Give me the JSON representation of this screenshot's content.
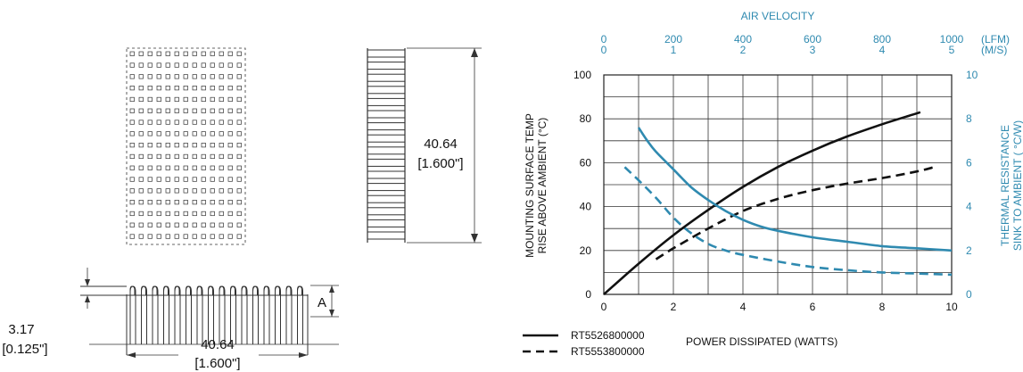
{
  "drawing": {
    "dim_height_mm": "40.64",
    "dim_height_in": "[1.600\"]",
    "dim_width_mm": "40.64",
    "dim_width_in": "[1.600\"]",
    "dim_base_mm": "3.17",
    "dim_base_in": "[0.125\"]",
    "dim_fin_label": "A"
  },
  "chart_data": {
    "type": "line",
    "title": "",
    "xlabel": "POWER DISSIPATED (WATTS)",
    "ylabel_lines": [
      "MOUNTING SURFACE TEMP",
      "RISE ABOVE AMBIENT (°C)"
    ],
    "y2label_lines": [
      "THERMAL RESISTANCE",
      "SINK TO AMBIENT ( °C/W)"
    ],
    "top_axis_title": "AIR VELOCITY",
    "top_unit_lfm": "(LFM)",
    "top_unit_ms": "(M/S)",
    "xlim": [
      0,
      10
    ],
    "ylim": [
      0,
      100
    ],
    "y2lim": [
      0,
      10
    ],
    "x_ticks": [
      "0",
      "2",
      "4",
      "6",
      "8",
      "10"
    ],
    "y_ticks": [
      "0",
      "20",
      "40",
      "60",
      "80",
      "100"
    ],
    "y2_ticks": [
      "0",
      "2",
      "4",
      "6",
      "8",
      "10"
    ],
    "top_ticks_lfm": [
      "0",
      "200",
      "400",
      "600",
      "800",
      "1000"
    ],
    "top_ticks_ms": [
      "0",
      "1",
      "2",
      "3",
      "4",
      "5"
    ],
    "grid": true,
    "legend_position": "bottom-left",
    "series": [
      {
        "name": "RT5526800000",
        "style": "solid",
        "color": "#111111",
        "kind": "temperature_rise",
        "x": [
          0,
          1,
          2,
          3,
          4,
          5,
          6,
          7,
          8,
          9.1
        ],
        "y": [
          0,
          14,
          27,
          38.5,
          49,
          58,
          65.5,
          72,
          77.5,
          83
        ]
      },
      {
        "name": "RT5553800000",
        "style": "dashed",
        "color": "#111111",
        "kind": "temperature_rise",
        "x": [
          1.5,
          2,
          3,
          4,
          5,
          6,
          7,
          8,
          9,
          9.5
        ],
        "y": [
          16,
          21,
          30,
          38,
          43.5,
          47.5,
          50.5,
          53,
          56,
          58
        ]
      },
      {
        "style": "solid",
        "color": "#2f8ab0",
        "kind": "thermal_resistance",
        "x": [
          1,
          1.25,
          1.5,
          2,
          2.5,
          3,
          3.5,
          4,
          4.5,
          5,
          6,
          7,
          8,
          9,
          10
        ],
        "y": [
          7.6,
          7.0,
          6.5,
          5.7,
          4.9,
          4.3,
          3.8,
          3.4,
          3.1,
          2.9,
          2.6,
          2.4,
          2.2,
          2.1,
          2.0
        ]
      },
      {
        "style": "dashed",
        "color": "#2f8ab0",
        "kind": "thermal_resistance",
        "x": [
          0.6,
          1,
          1.5,
          2,
          2.5,
          3,
          3.5,
          4,
          5,
          6,
          7,
          8,
          9,
          10
        ],
        "y": [
          5.8,
          5.2,
          4.4,
          3.5,
          2.8,
          2.3,
          2.0,
          1.8,
          1.5,
          1.25,
          1.1,
          1.0,
          0.95,
          0.9
        ]
      }
    ]
  }
}
